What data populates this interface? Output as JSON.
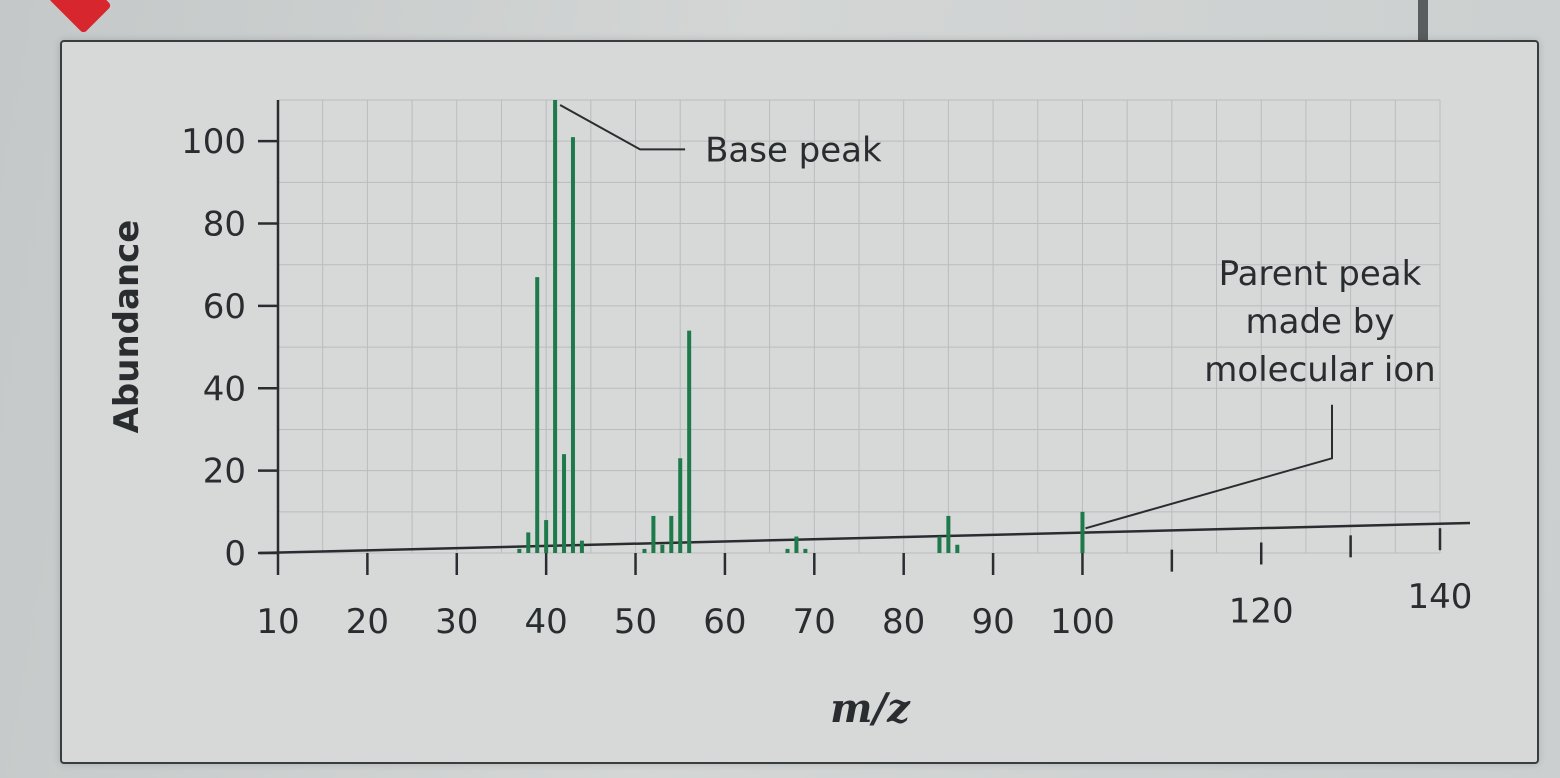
{
  "chart_data": {
    "type": "bar",
    "xlabel": "m/z",
    "ylabel": "Abundance",
    "xlim": [
      10,
      140
    ],
    "ylim": [
      0,
      110
    ],
    "x_ticks": [
      10,
      20,
      30,
      40,
      50,
      60,
      70,
      80,
      90,
      100,
      120,
      140
    ],
    "y_ticks": [
      0,
      20,
      40,
      60,
      80,
      100
    ],
    "grid": true,
    "bar_color": "#1e7a4a",
    "peaks": [
      {
        "x": 37,
        "y": 1
      },
      {
        "x": 38,
        "y": 5
      },
      {
        "x": 39,
        "y": 67
      },
      {
        "x": 40,
        "y": 8
      },
      {
        "x": 41,
        "y": 110
      },
      {
        "x": 42,
        "y": 24
      },
      {
        "x": 43,
        "y": 101
      },
      {
        "x": 44,
        "y": 3
      },
      {
        "x": 51,
        "y": 1
      },
      {
        "x": 52,
        "y": 9
      },
      {
        "x": 53,
        "y": 2
      },
      {
        "x": 54,
        "y": 9
      },
      {
        "x": 55,
        "y": 23
      },
      {
        "x": 56,
        "y": 54
      },
      {
        "x": 67,
        "y": 1
      },
      {
        "x": 68,
        "y": 4
      },
      {
        "x": 69,
        "y": 1
      },
      {
        "x": 84,
        "y": 4
      },
      {
        "x": 85,
        "y": 9
      },
      {
        "x": 86,
        "y": 2
      },
      {
        "x": 100,
        "y": 10
      }
    ],
    "annotations": [
      {
        "text": "Base peak",
        "target_x": 41
      },
      {
        "text": "Parent peak\nmade by\nmolecular ion",
        "target_x": 100
      }
    ]
  }
}
